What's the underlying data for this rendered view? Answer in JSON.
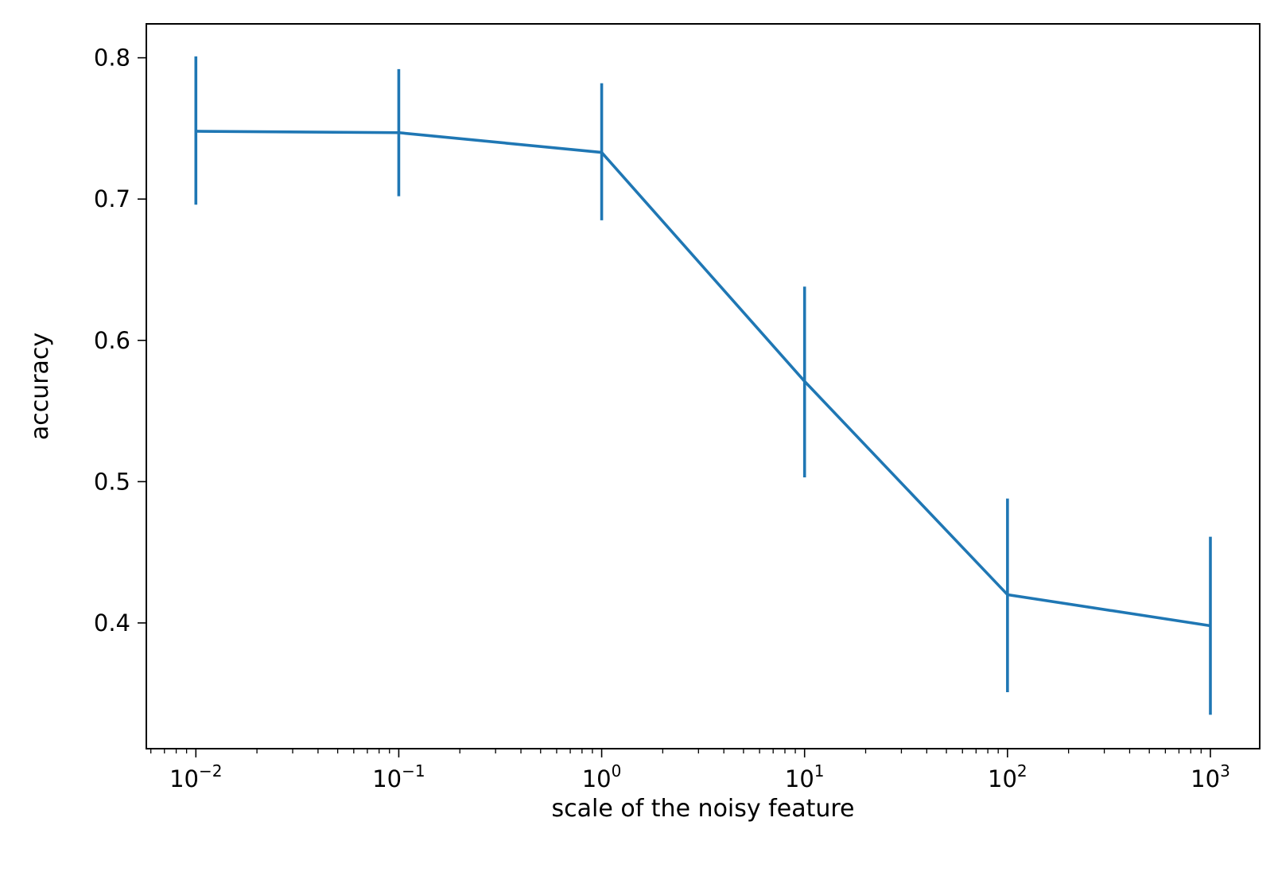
{
  "chart_data": {
    "type": "line",
    "title": "",
    "xlabel": "scale of the noisy feature",
    "ylabel": "accuracy",
    "x_scale": "log",
    "xlim": [
      0.0057,
      1750
    ],
    "ylim": [
      0.311,
      0.824
    ],
    "grid": false,
    "legend": "none",
    "x_ticks": [
      {
        "value": 0.01,
        "base": "10",
        "exp": "−2"
      },
      {
        "value": 0.1,
        "base": "10",
        "exp": "−1"
      },
      {
        "value": 1,
        "base": "10",
        "exp": "0"
      },
      {
        "value": 10,
        "base": "10",
        "exp": "1"
      },
      {
        "value": 100,
        "base": "10",
        "exp": "2"
      },
      {
        "value": 1000,
        "base": "10",
        "exp": "3"
      }
    ],
    "y_ticks": [
      {
        "value": 0.4,
        "label": "0.4"
      },
      {
        "value": 0.5,
        "label": "0.5"
      },
      {
        "value": 0.6,
        "label": "0.6"
      },
      {
        "value": 0.7,
        "label": "0.7"
      },
      {
        "value": 0.8,
        "label": "0.8"
      }
    ],
    "series": [
      {
        "color": "#1f77b4",
        "x": [
          0.01,
          0.1,
          1,
          10,
          100,
          1000
        ],
        "y": [
          0.748,
          0.747,
          0.733,
          0.571,
          0.42,
          0.398
        ],
        "err_low": [
          0.696,
          0.702,
          0.685,
          0.503,
          0.351,
          0.335
        ],
        "err_high": [
          0.801,
          0.792,
          0.782,
          0.638,
          0.488,
          0.461
        ]
      }
    ]
  }
}
